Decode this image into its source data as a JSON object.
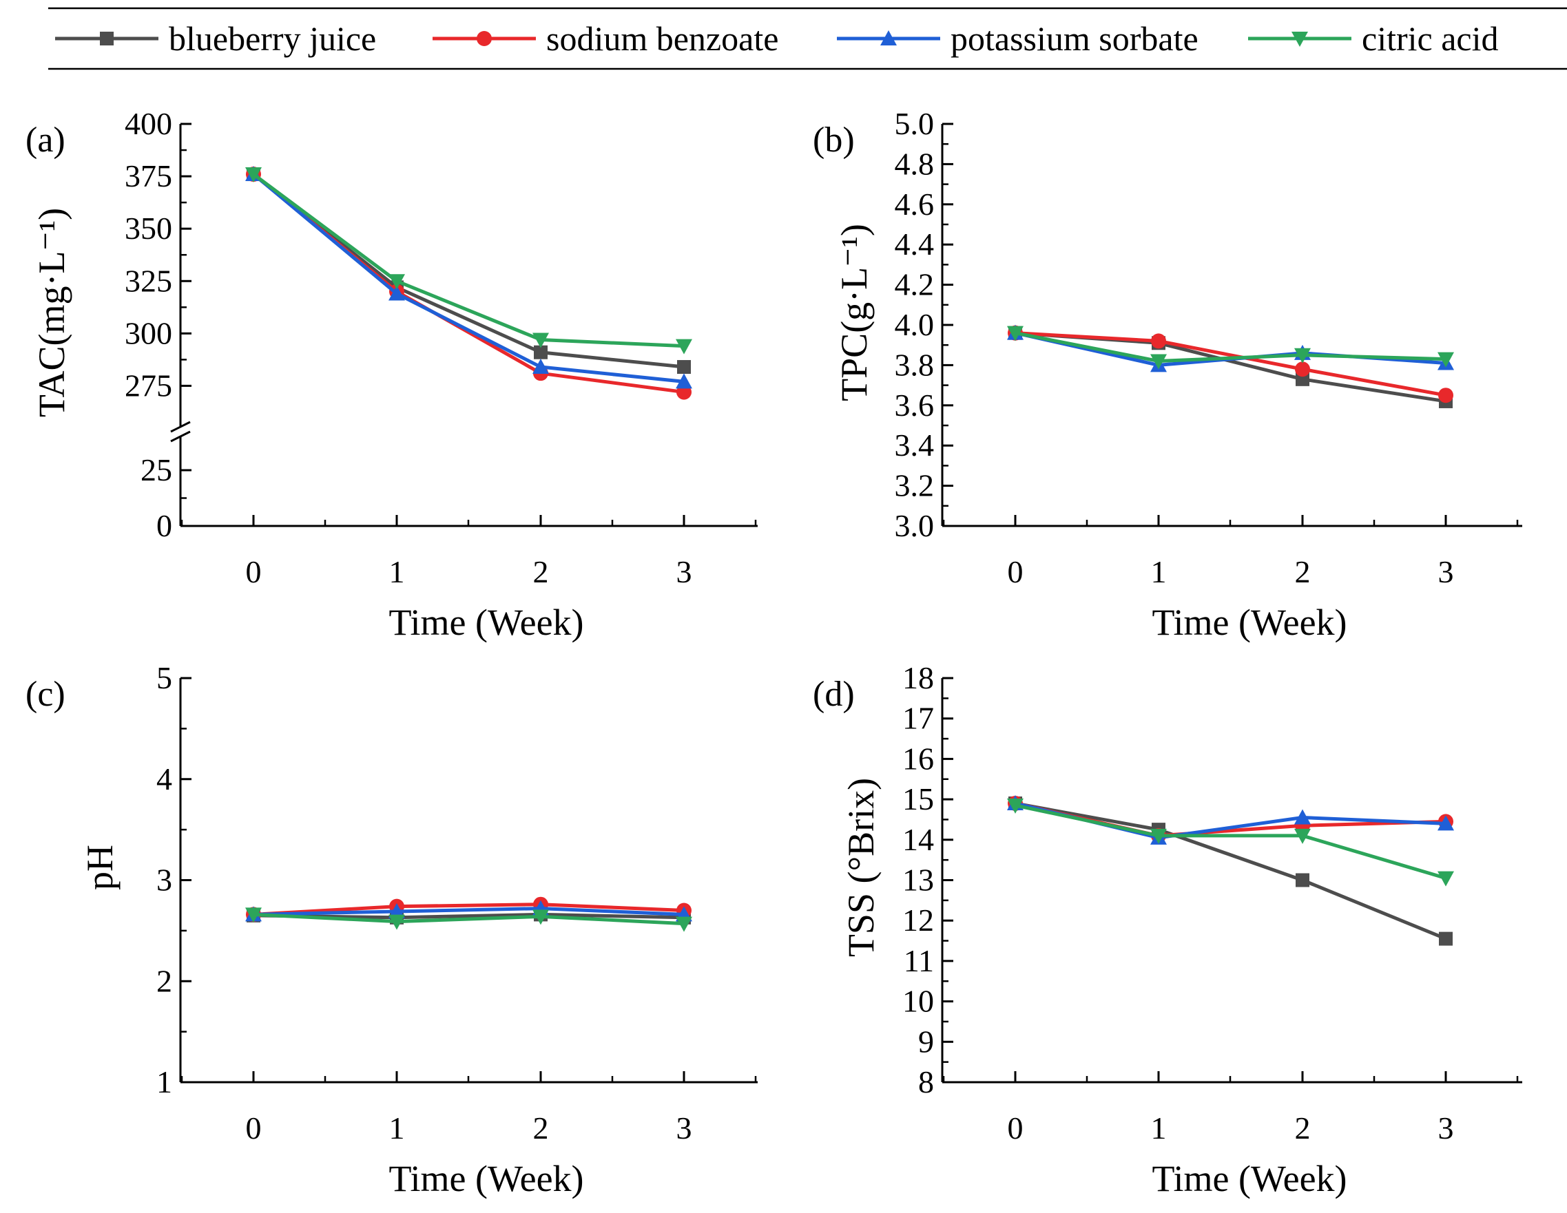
{
  "legend": {
    "items": [
      {
        "name": "blueberry juice",
        "color": "#4d4d4d",
        "marker": "square"
      },
      {
        "name": "sodium benzoate",
        "color": "#e8282b",
        "marker": "circle"
      },
      {
        "name": "potassium sorbate",
        "color": "#1f5fd6",
        "marker": "triangle-up"
      },
      {
        "name": "citric acid",
        "color": "#2ca55a",
        "marker": "triangle-down"
      }
    ]
  },
  "chart_data": [
    {
      "panel": "(a)",
      "type": "line",
      "xlabel": "Time (Week)",
      "ylabel": "TAC(mg·L⁻¹)",
      "x": [
        0,
        1,
        2,
        3
      ],
      "xticks": [
        "0",
        "1",
        "2",
        "3"
      ],
      "yticks": [
        "0",
        "25",
        "275",
        "300",
        "325",
        "350",
        "375",
        "400"
      ],
      "axis_break": {
        "lower": [
          0,
          25
        ],
        "upper": [
          262,
          400
        ]
      },
      "series": [
        {
          "name": "blueberry juice",
          "values": [
            376,
            322,
            291,
            284
          ]
        },
        {
          "name": "sodium benzoate",
          "values": [
            376,
            320,
            281,
            272
          ]
        },
        {
          "name": "potassium sorbate",
          "values": [
            376,
            319,
            284,
            277
          ]
        },
        {
          "name": "citric acid",
          "values": [
            376,
            325,
            297,
            294
          ]
        }
      ]
    },
    {
      "panel": "(b)",
      "type": "line",
      "xlabel": "Time (Week)",
      "ylabel": "TPC(g·L⁻¹)",
      "x": [
        0,
        1,
        2,
        3
      ],
      "xticks": [
        "0",
        "1",
        "2",
        "3"
      ],
      "ylim": [
        3.0,
        5.0
      ],
      "yticks": [
        "3.0",
        "3.2",
        "3.4",
        "3.6",
        "3.8",
        "4.0",
        "4.2",
        "4.4",
        "4.6",
        "4.8",
        "5.0"
      ],
      "series": [
        {
          "name": "blueberry juice",
          "values": [
            3.96,
            3.91,
            3.73,
            3.62
          ]
        },
        {
          "name": "sodium benzoate",
          "values": [
            3.96,
            3.92,
            3.78,
            3.65
          ]
        },
        {
          "name": "potassium sorbate",
          "values": [
            3.96,
            3.8,
            3.86,
            3.81
          ]
        },
        {
          "name": "citric acid",
          "values": [
            3.96,
            3.82,
            3.85,
            3.83
          ]
        }
      ]
    },
    {
      "panel": "(c)",
      "type": "line",
      "xlabel": "Time (Week)",
      "ylabel": "pH",
      "x": [
        0,
        1,
        2,
        3
      ],
      "xticks": [
        "0",
        "1",
        "2",
        "3"
      ],
      "ylim": [
        1,
        5
      ],
      "yticks": [
        "1",
        "2",
        "3",
        "4",
        "5"
      ],
      "series": [
        {
          "name": "blueberry juice",
          "values": [
            2.65,
            2.63,
            2.66,
            2.63
          ]
        },
        {
          "name": "sodium benzoate",
          "values": [
            2.66,
            2.74,
            2.76,
            2.7
          ]
        },
        {
          "name": "potassium sorbate",
          "values": [
            2.66,
            2.69,
            2.72,
            2.66
          ]
        },
        {
          "name": "citric acid",
          "values": [
            2.66,
            2.59,
            2.64,
            2.57
          ]
        }
      ]
    },
    {
      "panel": "(d)",
      "type": "line",
      "xlabel": "Time (Week)",
      "ylabel": "TSS (°Brix)",
      "x": [
        0,
        1,
        2,
        3
      ],
      "xticks": [
        "0",
        "1",
        "2",
        "3"
      ],
      "ylim": [
        8,
        18
      ],
      "yticks": [
        "8",
        "9",
        "10",
        "11",
        "12",
        "13",
        "14",
        "15",
        "16",
        "17",
        "18"
      ],
      "series": [
        {
          "name": "blueberry juice",
          "values": [
            14.9,
            14.25,
            13.0,
            11.55
          ]
        },
        {
          "name": "sodium benzoate",
          "values": [
            14.9,
            14.1,
            14.35,
            14.45
          ]
        },
        {
          "name": "potassium sorbate",
          "values": [
            14.9,
            14.05,
            14.55,
            14.4
          ]
        },
        {
          "name": "citric acid",
          "values": [
            14.85,
            14.1,
            14.1,
            13.05
          ]
        }
      ]
    }
  ]
}
